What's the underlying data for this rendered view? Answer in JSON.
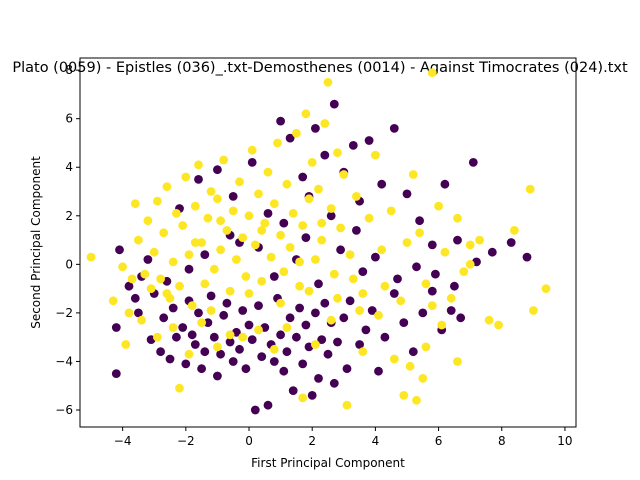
{
  "chart_data": {
    "type": "scatter",
    "title": "Plato (0059) - Epistles (036)_.txt-Demosthenes (0014) - Against Timocrates (024).txt",
    "xlabel": "First Principal Component",
    "ylabel": "Second Principal Component",
    "xlim": [
      -5.35,
      10.35
    ],
    "ylim": [
      -6.7,
      8.5
    ],
    "xticks": [
      -4,
      -2,
      0,
      2,
      4,
      6,
      8,
      10
    ],
    "yticks": [
      -6,
      -4,
      -2,
      0,
      2,
      4,
      6,
      8
    ],
    "grid": false,
    "legend": "none",
    "series": [
      {
        "color": "#440154",
        "points": [
          [
            -4.2,
            -4.5
          ],
          [
            -4.2,
            -2.6
          ],
          [
            -4.1,
            0.6
          ],
          [
            -3.8,
            -0.9
          ],
          [
            -3.6,
            -1.4
          ],
          [
            -3.5,
            -2.0
          ],
          [
            -3.4,
            -0.5
          ],
          [
            -3.1,
            -3.1
          ],
          [
            -3.0,
            -1.2
          ],
          [
            -2.8,
            -3.6
          ],
          [
            -2.7,
            -2.2
          ],
          [
            -2.5,
            -3.9
          ],
          [
            -2.4,
            -1.8
          ],
          [
            -2.3,
            -3.0
          ],
          [
            -2.1,
            -2.6
          ],
          [
            -2.0,
            -4.1
          ],
          [
            -1.9,
            -1.5
          ],
          [
            -1.8,
            -2.9
          ],
          [
            -1.7,
            -3.3
          ],
          [
            -1.6,
            -2.0
          ],
          [
            -1.5,
            -4.3
          ],
          [
            -1.4,
            -3.6
          ],
          [
            -1.3,
            -2.4
          ],
          [
            -1.2,
            -1.3
          ],
          [
            -1.1,
            -3.0
          ],
          [
            -1.0,
            -4.6
          ],
          [
            -0.9,
            -3.7
          ],
          [
            -0.8,
            -2.1
          ],
          [
            -0.7,
            -1.6
          ],
          [
            -0.6,
            -3.2
          ],
          [
            -0.5,
            -4.0
          ],
          [
            -0.4,
            -2.8
          ],
          [
            -0.3,
            -3.5
          ],
          [
            -0.2,
            -1.9
          ],
          [
            -0.1,
            -4.3
          ],
          [
            0.0,
            -2.5
          ],
          [
            0.1,
            -3.1
          ],
          [
            0.2,
            -6.0
          ],
          [
            0.3,
            -1.7
          ],
          [
            0.4,
            -3.8
          ],
          [
            0.5,
            -2.6
          ],
          [
            0.6,
            -5.8
          ],
          [
            0.7,
            -3.3
          ],
          [
            0.8,
            -4.0
          ],
          [
            0.9,
            -1.4
          ],
          [
            1.0,
            -2.9
          ],
          [
            1.1,
            -4.4
          ],
          [
            1.2,
            -3.6
          ],
          [
            1.3,
            -2.2
          ],
          [
            1.4,
            -5.2
          ],
          [
            1.5,
            -3.0
          ],
          [
            1.6,
            -1.8
          ],
          [
            1.7,
            -4.1
          ],
          [
            1.8,
            -2.5
          ],
          [
            1.9,
            -3.4
          ],
          [
            2.0,
            -5.4
          ],
          [
            2.1,
            -2.0
          ],
          [
            2.2,
            -4.7
          ],
          [
            2.3,
            -3.1
          ],
          [
            2.4,
            -1.6
          ],
          [
            2.5,
            -3.7
          ],
          [
            2.6,
            -2.4
          ],
          [
            2.7,
            -4.9
          ],
          [
            2.8,
            -3.2
          ],
          [
            3.0,
            -2.2
          ],
          [
            3.1,
            -4.3
          ],
          [
            3.2,
            -1.5
          ],
          [
            3.5,
            -3.3
          ],
          [
            3.7,
            -2.7
          ],
          [
            3.9,
            -1.9
          ],
          [
            4.1,
            -4.4
          ],
          [
            4.3,
            -3.0
          ],
          [
            4.6,
            -1.2
          ],
          [
            4.9,
            -2.4
          ],
          [
            5.2,
            -3.6
          ],
          [
            5.5,
            -2.0
          ],
          [
            5.8,
            -1.1
          ],
          [
            6.1,
            -2.7
          ],
          [
            6.4,
            -1.9
          ],
          [
            6.7,
            -2.2
          ],
          [
            -2.2,
            2.3
          ],
          [
            -1.6,
            3.5
          ],
          [
            -1.0,
            3.9
          ],
          [
            -0.5,
            2.8
          ],
          [
            0.1,
            4.2
          ],
          [
            0.6,
            2.1
          ],
          [
            1.0,
            5.9
          ],
          [
            1.3,
            5.2
          ],
          [
            1.7,
            3.6
          ],
          [
            2.1,
            5.6
          ],
          [
            2.4,
            4.5
          ],
          [
            2.7,
            6.6
          ],
          [
            3.0,
            3.8
          ],
          [
            3.3,
            4.9
          ],
          [
            3.5,
            2.6
          ],
          [
            3.8,
            5.1
          ],
          [
            4.2,
            3.3
          ],
          [
            4.6,
            5.6
          ],
          [
            5.0,
            2.9
          ],
          [
            5.4,
            1.8
          ],
          [
            5.8,
            0.8
          ],
          [
            6.2,
            3.3
          ],
          [
            6.6,
            1.0
          ],
          [
            7.1,
            4.2
          ],
          [
            7.7,
            0.5
          ],
          [
            8.3,
            0.9
          ],
          [
            8.8,
            0.3
          ],
          [
            -0.6,
            1.2
          ],
          [
            0.3,
            0.7
          ],
          [
            1.1,
            1.7
          ],
          [
            1.8,
            1.1
          ],
          [
            2.6,
            2.0
          ],
          [
            3.4,
            1.4
          ],
          [
            4.0,
            0.3
          ],
          [
            4.7,
            -0.6
          ],
          [
            5.3,
            -0.1
          ],
          [
            5.9,
            -0.4
          ],
          [
            6.5,
            -0.9
          ],
          [
            7.2,
            0.1
          ],
          [
            3.6,
            -0.3
          ],
          [
            2.9,
            0.6
          ],
          [
            2.2,
            -0.8
          ],
          [
            1.5,
            0.2
          ],
          [
            0.8,
            -0.5
          ],
          [
            -1.4,
            0.4
          ],
          [
            -2.6,
            -0.7
          ],
          [
            -3.2,
            0.2
          ],
          [
            -1.9,
            -0.2
          ],
          [
            -0.3,
            0.9
          ],
          [
            1.9,
            2.8
          ]
        ]
      },
      {
        "color": "#fde725",
        "points": [
          [
            -5.0,
            0.3
          ],
          [
            -4.3,
            -1.5
          ],
          [
            -4.0,
            -0.1
          ],
          [
            -3.8,
            -2.0
          ],
          [
            -3.6,
            2.5
          ],
          [
            -3.5,
            1.0
          ],
          [
            -3.3,
            -0.4
          ],
          [
            -3.2,
            1.8
          ],
          [
            -3.1,
            -1.0
          ],
          [
            -3.0,
            0.5
          ],
          [
            -2.9,
            2.6
          ],
          [
            -2.8,
            -0.6
          ],
          [
            -2.7,
            1.3
          ],
          [
            -2.6,
            3.2
          ],
          [
            -2.5,
            -1.4
          ],
          [
            -2.4,
            0.1
          ],
          [
            -2.3,
            2.1
          ],
          [
            -2.2,
            -0.9
          ],
          [
            -2.1,
            1.6
          ],
          [
            -2.0,
            3.6
          ],
          [
            -1.9,
            0.4
          ],
          [
            -1.8,
            -1.7
          ],
          [
            -1.7,
            2.4
          ],
          [
            -1.6,
            4.1
          ],
          [
            -1.5,
            0.9
          ],
          [
            -1.4,
            -0.8
          ],
          [
            -1.3,
            1.9
          ],
          [
            -1.2,
            3.0
          ],
          [
            -1.1,
            -0.2
          ],
          [
            -1.0,
            2.7
          ],
          [
            -0.9,
            0.6
          ],
          [
            -0.8,
            4.3
          ],
          [
            -0.7,
            1.4
          ],
          [
            -0.6,
            -1.1
          ],
          [
            -0.5,
            2.2
          ],
          [
            -0.4,
            0.2
          ],
          [
            -0.3,
            3.4
          ],
          [
            -0.2,
            1.1
          ],
          [
            -0.1,
            -0.5
          ],
          [
            0.0,
            2.0
          ],
          [
            0.1,
            4.7
          ],
          [
            0.2,
            0.8
          ],
          [
            0.3,
            2.9
          ],
          [
            0.4,
            -0.7
          ],
          [
            0.5,
            1.7
          ],
          [
            0.6,
            3.8
          ],
          [
            0.7,
            0.3
          ],
          [
            0.8,
            2.5
          ],
          [
            0.9,
            5.0
          ],
          [
            1.0,
            1.2
          ],
          [
            1.1,
            -0.3
          ],
          [
            1.2,
            3.3
          ],
          [
            1.3,
            0.7
          ],
          [
            1.4,
            2.1
          ],
          [
            1.5,
            5.4
          ],
          [
            1.6,
            -0.9
          ],
          [
            1.7,
            1.6
          ],
          [
            1.8,
            6.2
          ],
          [
            1.9,
            2.7
          ],
          [
            2.0,
            4.2
          ],
          [
            2.1,
            0.2
          ],
          [
            2.2,
            3.1
          ],
          [
            2.3,
            1.0
          ],
          [
            2.4,
            5.8
          ],
          [
            2.5,
            7.5
          ],
          [
            2.6,
            2.3
          ],
          [
            2.7,
            -0.4
          ],
          [
            2.8,
            4.6
          ],
          [
            2.9,
            1.5
          ],
          [
            3.0,
            3.7
          ],
          [
            3.2,
            0.4
          ],
          [
            3.4,
            2.8
          ],
          [
            3.6,
            -1.2
          ],
          [
            3.8,
            1.9
          ],
          [
            4.0,
            4.5
          ],
          [
            4.2,
            0.6
          ],
          [
            4.5,
            2.2
          ],
          [
            4.8,
            -1.5
          ],
          [
            5.0,
            0.9
          ],
          [
            5.2,
            3.7
          ],
          [
            5.4,
            1.3
          ],
          [
            5.6,
            -0.8
          ],
          [
            5.8,
            7.9
          ],
          [
            6.0,
            2.4
          ],
          [
            6.2,
            0.5
          ],
          [
            6.4,
            -1.4
          ],
          [
            6.6,
            1.9
          ],
          [
            6.8,
            -0.3
          ],
          [
            7.0,
            0.8
          ],
          [
            7.3,
            1.0
          ],
          [
            7.6,
            -2.3
          ],
          [
            7.9,
            -2.5
          ],
          [
            8.4,
            1.4
          ],
          [
            8.9,
            3.1
          ],
          [
            9.0,
            -1.9
          ],
          [
            9.4,
            -1.0
          ],
          [
            -3.9,
            -3.3
          ],
          [
            -3.4,
            -2.3
          ],
          [
            -2.9,
            -3.0
          ],
          [
            -2.4,
            -2.6
          ],
          [
            -2.2,
            -5.1
          ],
          [
            -1.9,
            -3.7
          ],
          [
            -1.5,
            -2.4
          ],
          [
            -1.0,
            -3.4
          ],
          [
            -0.6,
            -2.9
          ],
          [
            -0.2,
            -3.0
          ],
          [
            0.3,
            -2.7
          ],
          [
            0.8,
            -3.5
          ],
          [
            1.2,
            -2.6
          ],
          [
            1.7,
            -5.5
          ],
          [
            2.1,
            -3.3
          ],
          [
            2.6,
            -2.3
          ],
          [
            3.1,
            -5.8
          ],
          [
            3.6,
            -3.6
          ],
          [
            4.1,
            -2.1
          ],
          [
            4.6,
            -3.9
          ],
          [
            5.1,
            -4.2
          ],
          [
            5.6,
            -3.4
          ],
          [
            6.1,
            -2.5
          ],
          [
            6.6,
            -4.0
          ],
          [
            5.3,
            -5.6
          ],
          [
            4.9,
            -5.4
          ],
          [
            5.5,
            -4.7
          ],
          [
            3.5,
            -1.9
          ],
          [
            2.8,
            -1.4
          ],
          [
            1.9,
            -1.1
          ],
          [
            1.0,
            -1.6
          ],
          [
            0.0,
            -1.2
          ],
          [
            -1.2,
            -1.9
          ],
          [
            -2.6,
            -1.2
          ],
          [
            -3.7,
            -0.6
          ],
          [
            -1.7,
            0.9
          ],
          [
            -0.9,
            1.8
          ],
          [
            0.4,
            1.4
          ],
          [
            1.6,
            0.1
          ],
          [
            2.3,
            1.7
          ],
          [
            3.3,
            -0.6
          ],
          [
            4.3,
            -0.9
          ],
          [
            5.8,
            -1.7
          ],
          [
            7.0,
            0.0
          ]
        ]
      }
    ]
  }
}
